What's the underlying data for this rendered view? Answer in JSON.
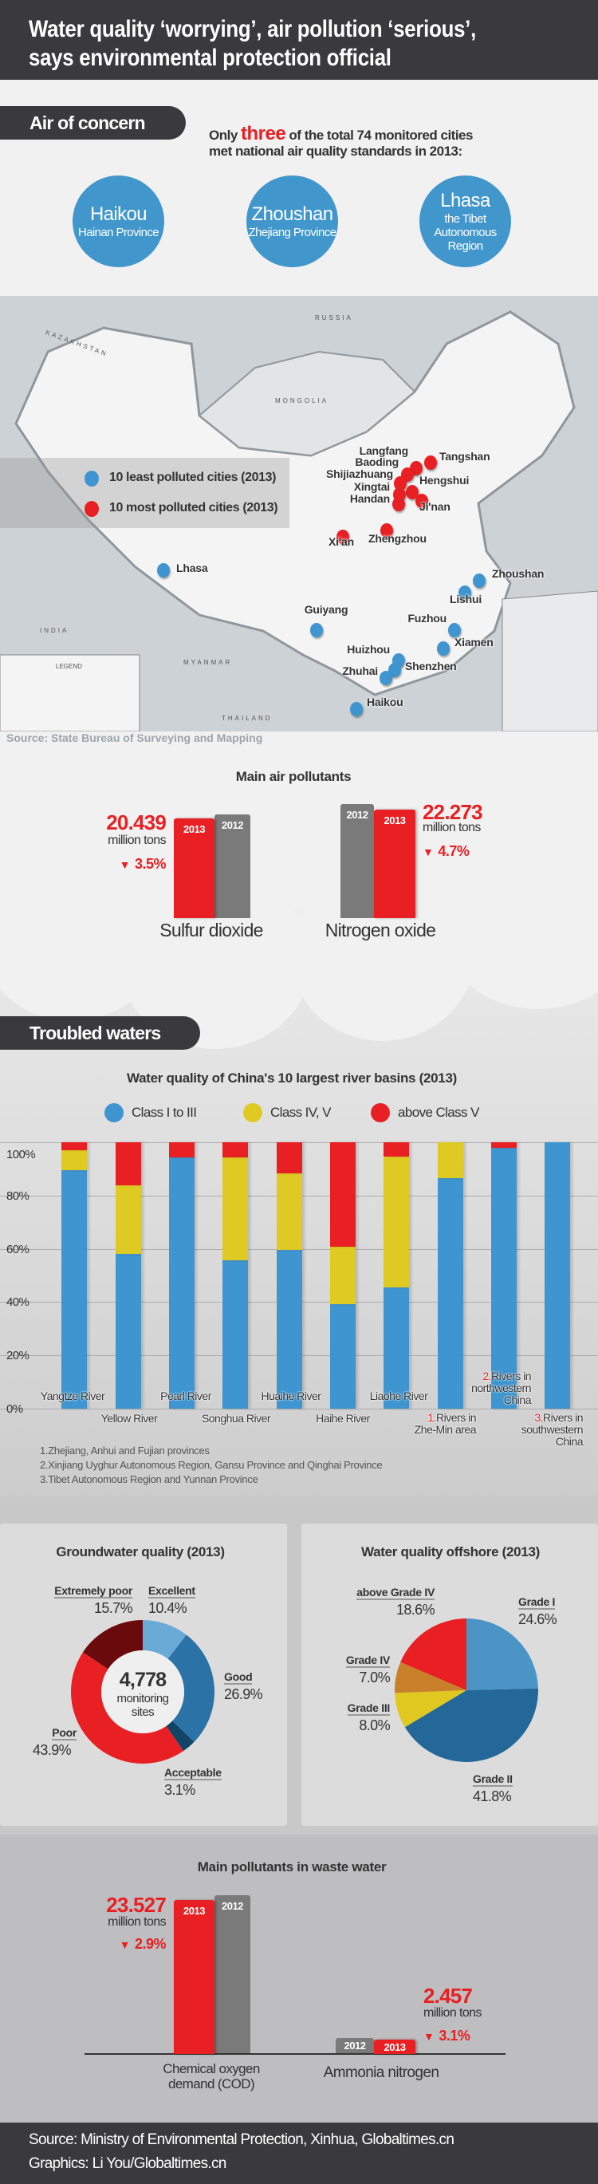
{
  "header": {
    "title_line1": "Water quality ‘worrying’, air pollution ‘serious’,",
    "title_line2": "says environmental protection official"
  },
  "air": {
    "section_label": "Air of concern",
    "intro_before": "Only ",
    "intro_highlight": "three",
    "intro_after": " of the total 74 monitored cities",
    "intro_line2": "met national air quality standards in 2013:",
    "cities": [
      {
        "name": "Haikou",
        "region": "Hainan Province"
      },
      {
        "name": "Zhoushan",
        "region": "Zhejiang Province"
      },
      {
        "name": "Lhasa",
        "region_line1": "the Tibet",
        "region_line2": "Autonomous Region"
      }
    ]
  },
  "map": {
    "legend_least": "10 least polluted cities (2013)",
    "legend_most": "10 most polluted cities (2013)",
    "country_labels": [
      "RUSSIA",
      "MONGOLIA",
      "KAZAKHSTAN",
      "INDIA",
      "MYANMAR",
      "THAILAND",
      "LEGEND"
    ],
    "most_polluted": [
      "Tangshan",
      "Langfang",
      "Baoding",
      "Shijiazhuang",
      "Hengshui",
      "Xingtai",
      "Handan",
      "Ji'nan",
      "Zhengzhou",
      "Xi'an"
    ],
    "least_polluted": [
      "Lhasa",
      "Zhoushan",
      "Lishui",
      "Guiyang",
      "Fuzhou",
      "Xiamen",
      "Huizhou",
      "Shenzhen",
      "Zhuhai",
      "Haikou"
    ],
    "source": "Source: State Bureau of Surveying and Mapping"
  },
  "chart_data": [
    {
      "type": "bar",
      "title": "Main air pollutants",
      "unit": "million tons",
      "categories": [
        "Sulfur dioxide",
        "Nitrogen oxide"
      ],
      "year_labels": {
        "current": "2013",
        "previous": "2012"
      },
      "values_2013": [
        "20.439",
        "22.273"
      ],
      "change": [
        "3.5%",
        "4.7%"
      ],
      "change_fraction": [
        -0.035,
        -0.047
      ]
    },
    {
      "type": "bar",
      "stacked": true,
      "title": "Water quality of China's 10 largest river basins (2013)",
      "legend": [
        "Class I to III",
        "Class IV, V",
        "above Class V"
      ],
      "colors": [
        "#3f95cf",
        "#dfc923",
        "#e82024"
      ],
      "yticks": [
        "100%",
        "80%",
        "60%",
        "40%",
        "20%",
        "0%"
      ],
      "ylim": [
        0,
        100
      ],
      "categories": [
        "Yangtze River",
        "Yellow River",
        "Pearl River",
        "Songhua River",
        "Huaihe River",
        "Haihe River",
        "Liaohe River",
        "Rivers in Zhe-Min area",
        "Rivers in northwestern China",
        "Rivers in southwestern China"
      ],
      "category_lines": [
        [
          "Yangtze River"
        ],
        [
          "Yellow River"
        ],
        [
          "Pearl River"
        ],
        [
          "Songhua River"
        ],
        [
          "Huaihe River"
        ],
        [
          "Haihe River"
        ],
        [
          "Liaohe River"
        ],
        [
          "1.",
          "Rivers in",
          "Zhe-Min area"
        ],
        [
          "2.",
          "Rivers in",
          "northwestern",
          "China"
        ],
        [
          "3.",
          "Rivers in",
          "southwestern",
          "China"
        ]
      ],
      "series": [
        {
          "name": "Class I to III",
          "values": [
            89.4,
            58.1,
            94.4,
            55.7,
            59.6,
            39.1,
            45.5,
            86.4,
            98.0,
            100
          ]
        },
        {
          "name": "Class IV, V",
          "values": [
            7.5,
            25.8,
            0,
            38.6,
            28.7,
            21.8,
            49.1,
            13.6,
            0,
            0
          ]
        },
        {
          "name": "above Class V",
          "values": [
            3.1,
            16.1,
            5.6,
            5.7,
            11.7,
            39.1,
            5.4,
            0,
            2.0,
            0
          ]
        }
      ],
      "footnotes": [
        "1.Zhejiang, Anhui and Fujian provinces",
        "2.Xinjiang Uyghur Autonomous Region, Gansu Province and Qinghai Province",
        "3.Tibet Autonomous Region and Yunnan Province"
      ]
    },
    {
      "type": "pie",
      "donut": true,
      "title": "Groundwater quality (2013)",
      "center_value": "4,778",
      "center_label_1": "monitoring",
      "center_label_2": "sites",
      "slices": [
        {
          "label": "Excellent",
          "value": 10.4,
          "text": "10.4%",
          "color": "#6aaad6"
        },
        {
          "label": "Good",
          "value": 26.9,
          "text": "26.9%",
          "color": "#2b73a6"
        },
        {
          "label": "Acceptable",
          "value": 3.1,
          "text": "3.1%",
          "color": "#124466"
        },
        {
          "label": "Poor",
          "value": 43.9,
          "text": "43.9%",
          "color": "#e82024"
        },
        {
          "label": "Extremely poor",
          "value": 15.7,
          "text": "15.7%",
          "color": "#6b0a0c"
        }
      ]
    },
    {
      "type": "pie",
      "title": "Water quality offshore (2013)",
      "slices": [
        {
          "label": "Grade I",
          "value": 24.6,
          "text": "24.6%",
          "color": "#4a95c5"
        },
        {
          "label": "Grade II",
          "value": 41.8,
          "text": "41.8%",
          "color": "#236898"
        },
        {
          "label": "Grade III",
          "value": 8.0,
          "text": "8.0%",
          "color": "#e0c820"
        },
        {
          "label": "Grade IV",
          "value": 7.0,
          "text": "7.0%",
          "color": "#c8812a"
        },
        {
          "label": "above Grade IV",
          "value": 18.6,
          "text": "18.6%",
          "color": "#e82024"
        }
      ]
    },
    {
      "type": "bar",
      "title": "Main pollutants in waste water",
      "unit": "million tons",
      "categories": [
        "Chemical oxygen demand (COD)",
        "Ammonia nitrogen"
      ],
      "category_lines": [
        [
          "Chemical oxygen",
          "demand (COD)"
        ],
        [
          "Ammonia nitrogen"
        ]
      ],
      "year_labels": {
        "current": "2013",
        "previous": "2012"
      },
      "values_2013": [
        "23.527",
        "2.457"
      ],
      "change": [
        "2.9%",
        "3.1%"
      ]
    }
  ],
  "water": {
    "section_label": "Troubled waters"
  },
  "footer": {
    "source": "Source:  Ministry of Environmental Protection, Xinhua, Globaltimes.cn",
    "graphics": "Graphics: Li You/Globaltimes.cn"
  }
}
